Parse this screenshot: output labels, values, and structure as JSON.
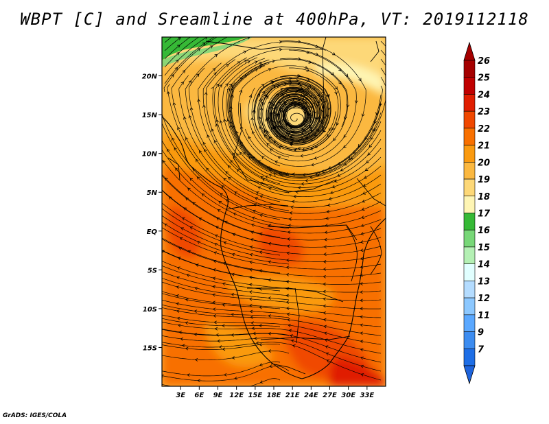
{
  "title": "WBPT [C] and Sreamline at 400hPa, VT: 2019112118",
  "credit": "GrADS: IGES/COLA",
  "map": {
    "lon_range": [
      0,
      36
    ],
    "lat_range": [
      -20,
      25
    ],
    "lon_ticks": [
      {
        "value": 3,
        "label": "3E"
      },
      {
        "value": 6,
        "label": "6E"
      },
      {
        "value": 9,
        "label": "9E"
      },
      {
        "value": 12,
        "label": "12E"
      },
      {
        "value": 15,
        "label": "15E"
      },
      {
        "value": 18,
        "label": "18E"
      },
      {
        "value": 21,
        "label": "21E"
      },
      {
        "value": 24,
        "label": "24E"
      },
      {
        "value": 27,
        "label": "27E"
      },
      {
        "value": 30,
        "label": "30E"
      },
      {
        "value": 33,
        "label": "33E"
      }
    ],
    "lat_ticks": [
      {
        "value": 20,
        "label": "20N"
      },
      {
        "value": 15,
        "label": "15N"
      },
      {
        "value": 10,
        "label": "10N"
      },
      {
        "value": 5,
        "label": "5N"
      },
      {
        "value": 0,
        "label": "EQ"
      },
      {
        "value": -5,
        "label": "5S"
      },
      {
        "value": -10,
        "label": "10S"
      },
      {
        "value": -15,
        "label": "15S"
      }
    ],
    "low_centre": {
      "lon": 21.5,
      "lat": 14.5
    }
  },
  "colorbar": {
    "levels": [
      {
        "label": "26",
        "color": "#a50000"
      },
      {
        "label": "25",
        "color": "#c00000"
      },
      {
        "label": "24",
        "color": "#e01e00"
      },
      {
        "label": "23",
        "color": "#f04800"
      },
      {
        "label": "22",
        "color": "#f87000"
      },
      {
        "label": "21",
        "color": "#fa9a10"
      },
      {
        "label": "20",
        "color": "#fbb840"
      },
      {
        "label": "19",
        "color": "#fdd878"
      },
      {
        "label": "18",
        "color": "#fef5b4"
      },
      {
        "label": "17",
        "color": "#36b936"
      },
      {
        "label": "16",
        "color": "#78d778"
      },
      {
        "label": "15",
        "color": "#b4f0b4"
      },
      {
        "label": "14",
        "color": "#e1ffff"
      },
      {
        "label": "13",
        "color": "#b4dcff"
      },
      {
        "label": "12",
        "color": "#8cc8ff"
      },
      {
        "label": "11",
        "color": "#5aa8ff"
      },
      {
        "label": "9",
        "color": "#3c8cf0"
      },
      {
        "label": "7",
        "color": "#1e6ee6"
      }
    ],
    "bottom_color": "#1e64dc"
  }
}
